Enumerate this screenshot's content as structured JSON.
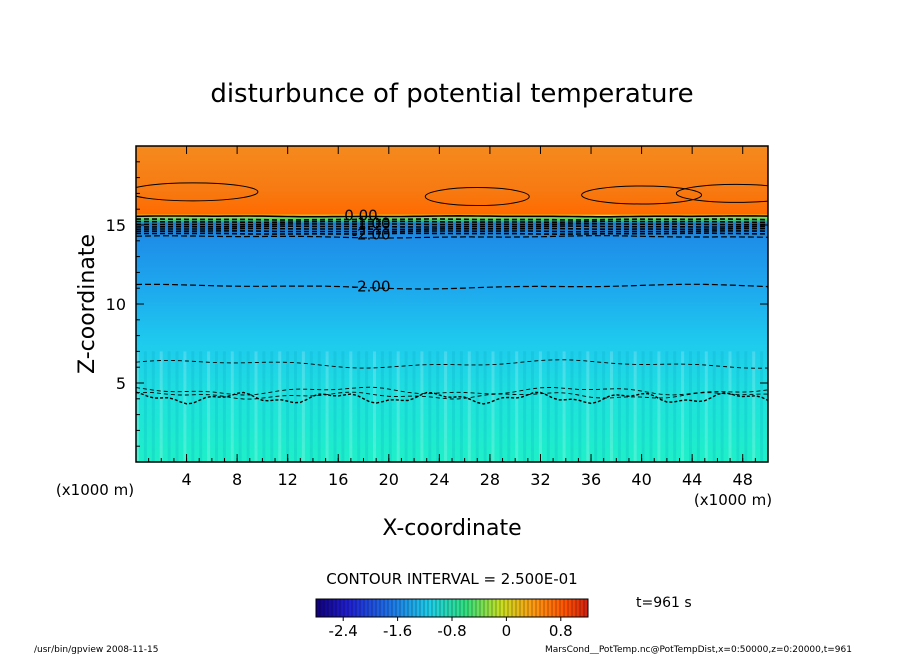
{
  "chart_data": {
    "type": "heatmap",
    "title": "disturbunce of potential temperature",
    "xlabel": "X-coordinate",
    "ylabel": "Z-coordinate",
    "x_unit_label": "(x1000 m)",
    "y_unit_label": "(x1000 m)",
    "xlim": [
      0,
      50
    ],
    "ylim": [
      0,
      20
    ],
    "x_ticks": [
      4,
      8,
      12,
      16,
      20,
      24,
      28,
      32,
      36,
      40,
      44,
      48
    ],
    "y_ticks": [
      5,
      10,
      15
    ],
    "contour_interval_text": "CONTOUR INTERVAL = 2.500E-01",
    "contour_labels": [
      {
        "text": "0.00",
        "x": 17.8,
        "z": 15.6
      },
      {
        "text": "-1.00",
        "x": 18.6,
        "z": 15.1
      },
      {
        "text": "-2.00",
        "x": 18.6,
        "z": 14.4
      },
      {
        "text": "-2.00",
        "x": 18.6,
        "z": 11.1
      }
    ],
    "colorbar": {
      "ticks": [
        "-2.4",
        "-1.6",
        "-0.8",
        "0",
        "0.8"
      ],
      "range": [
        -2.8,
        1.2
      ]
    },
    "field_bands": [
      {
        "z0": 15.6,
        "z1": 20.0,
        "value": 0.9
      },
      {
        "z0": 15.3,
        "z1": 15.6,
        "value": -0.4
      },
      {
        "z0": 15.0,
        "z1": 15.3,
        "value": -1.1
      },
      {
        "z0": 14.0,
        "z1": 15.0,
        "value": -2.2
      },
      {
        "z0": 11.0,
        "z1": 14.0,
        "value": -2.0
      },
      {
        "z0": 6.5,
        "z1": 11.0,
        "value": -1.75
      },
      {
        "z0": 4.0,
        "z1": 6.5,
        "value": -1.55
      },
      {
        "z0": 0.0,
        "z1": 4.0,
        "value": -1.35
      }
    ],
    "time_label": "t=961 s"
  },
  "footer": {
    "left": "/usr/bin/gpview   2008-11-15",
    "right": "MarsCond__PotTemp.nc@PotTempDist,x=0:50000,z=0:20000,t=961"
  }
}
